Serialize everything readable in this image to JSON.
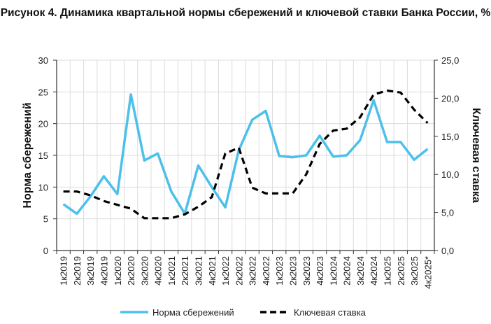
{
  "chart_data": {
    "type": "line",
    "title": "Рисунок 4. Динамика квартальной нормы сбережений и ключевой ставки Банка России, %",
    "ylabel": "Норма сбережений",
    "y2label": "Ключевая ставка",
    "ylim": [
      0,
      30
    ],
    "y2lim": [
      0,
      25
    ],
    "yticks": [
      "0",
      "5",
      "10",
      "15",
      "20",
      "25",
      "30"
    ],
    "y2ticks": [
      "0,0",
      "5,0",
      "10,0",
      "15,0",
      "20,0",
      "25,0"
    ],
    "grid": true,
    "legend": "bottom",
    "categories": [
      "1к2019",
      "2к2019",
      "3к2019",
      "4к2019",
      "1к2020",
      "2к2020",
      "3к2020",
      "4к2020",
      "1к2021",
      "2к2021",
      "3к2021",
      "4к2021",
      "1к2022",
      "2к2022",
      "3к2022",
      "4к2022",
      "1к2023",
      "2к2023",
      "3к2023",
      "4к2023",
      "1к2024",
      "2к2024",
      "3к2024",
      "4к2024",
      "1к2025",
      "2к2025",
      "3к2025",
      "4к2025*"
    ],
    "series": [
      {
        "name": "Норма сбережений",
        "axis": "left",
        "color": "#4cc0ea",
        "style": "solid",
        "values": [
          7.3,
          5.8,
          8.5,
          11.7,
          8.9,
          24.6,
          14.2,
          15.3,
          9.3,
          5.8,
          13.4,
          10.0,
          6.8,
          15.8,
          20.6,
          22.0,
          14.9,
          14.7,
          15.0,
          18.1,
          14.8,
          15.0,
          17.4,
          23.7,
          17.1,
          17.1,
          14.3,
          16.0
        ]
      },
      {
        "name": "Ключевая ставка",
        "axis": "right",
        "color": "#000000",
        "style": "dashed",
        "values": [
          7.75,
          7.75,
          7.25,
          6.5,
          6.0,
          5.5,
          4.25,
          4.25,
          4.25,
          4.75,
          5.75,
          7.0,
          12.75,
          13.5,
          8.25,
          7.5,
          7.5,
          7.5,
          10.0,
          14.0,
          15.75,
          16.0,
          17.5,
          20.5,
          21.0,
          20.75,
          18.5,
          16.75
        ]
      }
    ]
  }
}
